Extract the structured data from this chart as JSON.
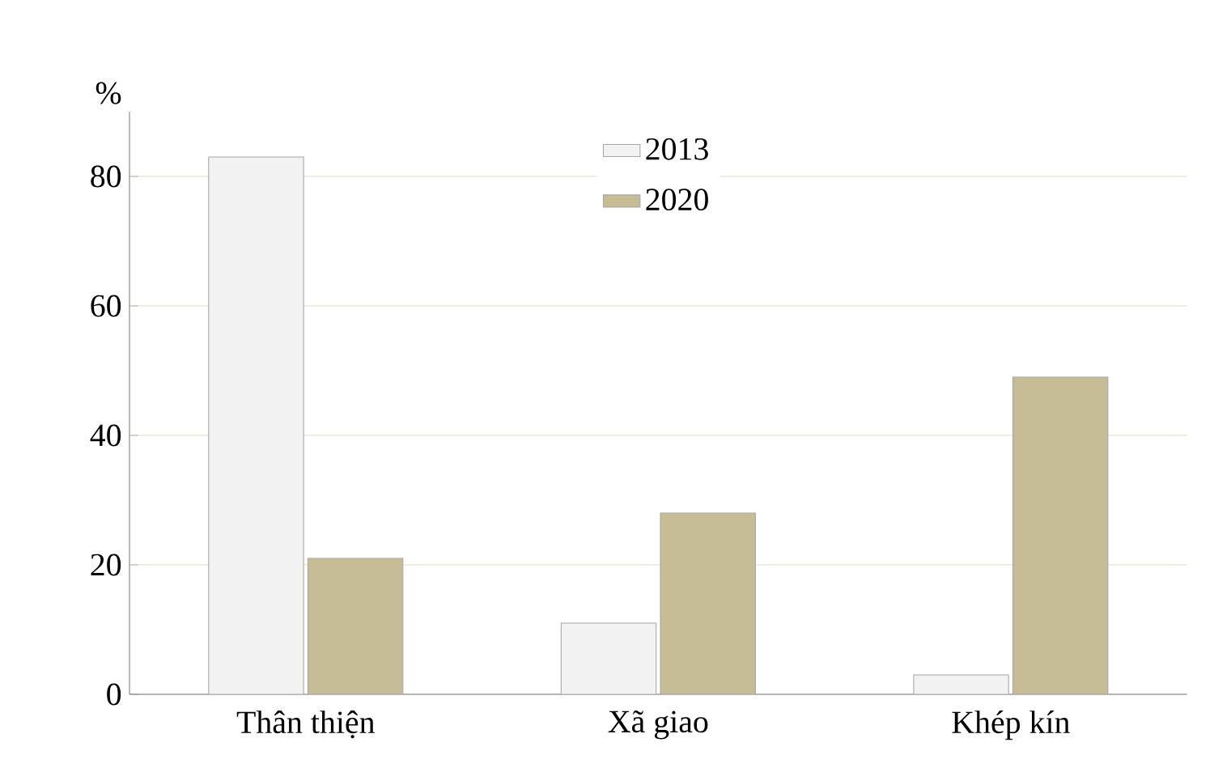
{
  "chart_data": {
    "type": "bar",
    "ylabel": "%",
    "categories": [
      "Thân thiện",
      "Xã giao",
      "Khép kín"
    ],
    "series": [
      {
        "name": "2013",
        "color": "#f2f2f2",
        "values": [
          83,
          11,
          3
        ]
      },
      {
        "name": "2020",
        "color": "#c6bd97",
        "values": [
          21,
          28,
          49
        ]
      }
    ],
    "ylim": [
      0,
      90
    ],
    "yticks": [
      0,
      20,
      40,
      60,
      80
    ],
    "grid": "y",
    "legend": "top"
  }
}
